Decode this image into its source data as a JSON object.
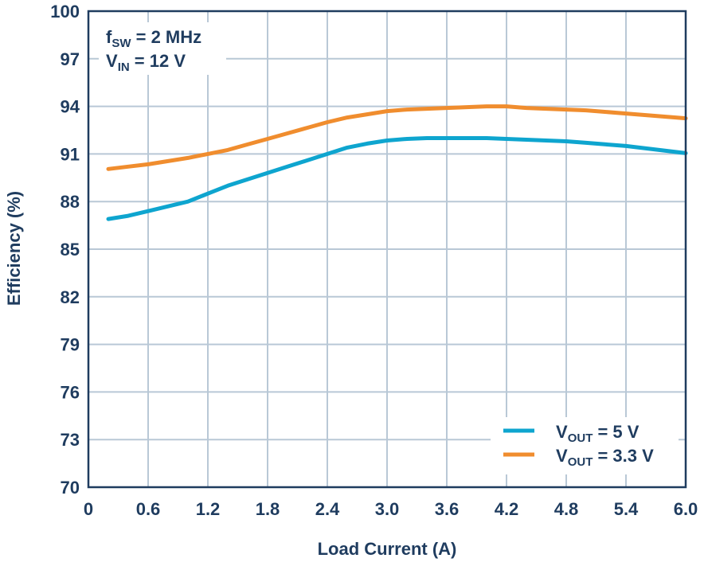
{
  "chart_data": {
    "type": "line",
    "title": "",
    "xlabel": "Load Current (A)",
    "ylabel": "Efficiency (%)",
    "xlim": [
      0,
      6.0
    ],
    "ylim": [
      70,
      100
    ],
    "grid": true,
    "x_ticks": [
      0,
      0.6,
      1.2,
      1.8,
      2.4,
      3.0,
      3.6,
      4.2,
      4.8,
      5.4,
      6.0
    ],
    "x_tick_labels": [
      "0",
      "0.6",
      "1.2",
      "1.8",
      "2.4",
      "3.0",
      "3.6",
      "4.2",
      "4.8",
      "5.4",
      "6.0"
    ],
    "y_ticks": [
      70,
      73,
      76,
      79,
      82,
      85,
      88,
      91,
      94,
      97,
      100
    ],
    "y_tick_labels": [
      "70",
      "73",
      "76",
      "79",
      "82",
      "85",
      "88",
      "91",
      "94",
      "97",
      "100"
    ],
    "annotation": {
      "line1": {
        "main": "f",
        "sub": "SW",
        "rest": " = 2 MHz"
      },
      "line2": {
        "main": "V",
        "sub": "IN",
        "rest": " = 12 V"
      }
    },
    "legend_position": "bottom-right",
    "series": [
      {
        "name": "VOUT = 5 V",
        "label_main": "V",
        "label_sub": "OUT",
        "label_rest": " = 5 V",
        "color": "#0ea5cf",
        "x": [
          0.2,
          0.4,
          0.6,
          0.8,
          1.0,
          1.2,
          1.4,
          1.6,
          1.8,
          2.0,
          2.2,
          2.4,
          2.6,
          2.8,
          3.0,
          3.2,
          3.4,
          3.6,
          3.8,
          4.0,
          4.2,
          4.4,
          4.6,
          4.8,
          5.0,
          5.2,
          5.4,
          5.6,
          5.8,
          6.0
        ],
        "values": [
          86.9,
          87.1,
          87.4,
          87.7,
          88.0,
          88.5,
          89.0,
          89.4,
          89.8,
          90.2,
          90.6,
          91.0,
          91.4,
          91.65,
          91.85,
          91.95,
          92.0,
          92.0,
          92.0,
          92.0,
          91.95,
          91.9,
          91.85,
          91.8,
          91.7,
          91.6,
          91.5,
          91.35,
          91.2,
          91.05
        ]
      },
      {
        "name": "VOUT = 3.3 V",
        "label_main": "V",
        "label_sub": "OUT",
        "label_rest": " = 3.3 V",
        "color": "#f08d2e",
        "x": [
          0.2,
          0.4,
          0.6,
          0.8,
          1.0,
          1.2,
          1.4,
          1.6,
          1.8,
          2.0,
          2.2,
          2.4,
          2.6,
          2.8,
          3.0,
          3.2,
          3.4,
          3.6,
          3.8,
          4.0,
          4.2,
          4.4,
          4.6,
          4.8,
          5.0,
          5.2,
          5.4,
          5.6,
          5.8,
          6.0
        ],
        "values": [
          90.05,
          90.2,
          90.35,
          90.55,
          90.75,
          91.0,
          91.25,
          91.6,
          91.95,
          92.3,
          92.65,
          93.0,
          93.3,
          93.5,
          93.7,
          93.8,
          93.85,
          93.9,
          93.95,
          94.0,
          94.0,
          93.9,
          93.85,
          93.8,
          93.75,
          93.65,
          93.55,
          93.45,
          93.35,
          93.25
        ]
      }
    ]
  }
}
